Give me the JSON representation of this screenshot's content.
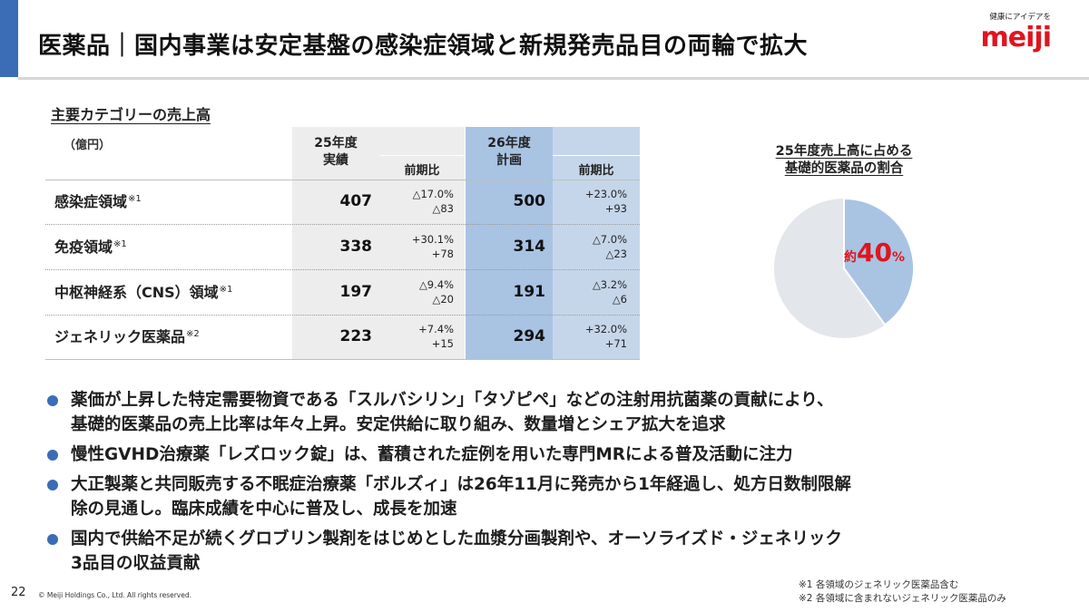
{
  "header": {
    "title": "医薬品｜国内事業は安定基盤の感染症領域と新規発売品目の両輪で拡大",
    "accent_color": "#3a6db5"
  },
  "logo": {
    "tagline": "健康にアイデアを",
    "wordmark": "meiji",
    "color": "#e1141e"
  },
  "table": {
    "title": "主要カテゴリーの売上高",
    "unit": "（億円）",
    "headers": {
      "fy25_line1": "25年度",
      "fy25_line2": "実績",
      "fy25_change": "前期比",
      "fy26_line1": "26年度",
      "fy26_line2": "計画",
      "fy26_change": "前期比"
    },
    "rows": [
      {
        "category": "感染症領域",
        "note": "※1",
        "fy25": "407",
        "fy25_pct": "△17.0%",
        "fy25_abs": "△83",
        "fy26": "500",
        "fy26_pct": "+23.0%",
        "fy26_abs": "+93"
      },
      {
        "category": "免疫領域",
        "note": "※1",
        "fy25": "338",
        "fy25_pct": "+30.1%",
        "fy25_abs": "+78",
        "fy26": "314",
        "fy26_pct": "△7.0%",
        "fy26_abs": "△23"
      },
      {
        "category": "中枢神経系（CNS）領域",
        "note": "※1",
        "fy25": "197",
        "fy25_pct": "△9.4%",
        "fy25_abs": "△20",
        "fy26": "191",
        "fy26_pct": "△3.2%",
        "fy26_abs": "△6"
      },
      {
        "category": "ジェネリック医薬品",
        "note": "※2",
        "fy25": "223",
        "fy25_pct": "+7.4%",
        "fy25_abs": "+15",
        "fy26": "294",
        "fy26_pct": "+32.0%",
        "fy26_abs": "+71"
      }
    ]
  },
  "pie": {
    "title_line1": "25年度売上高に占める",
    "title_line2": "基礎的医薬品の割合",
    "share_percent": 40,
    "label_prefix": "約",
    "label_value": "40",
    "label_unit": "%",
    "share_color": "#a9c3e3",
    "rest_color": "#e3e6ea",
    "label_color": "#e0141d"
  },
  "bullets": [
    {
      "line1": "薬価が上昇した特定需要物資である「スルバシリン」「タゾピペ」などの注射用抗菌薬の貢献により、",
      "line2": "基礎的医薬品の売上比率は年々上昇。安定供給に取り組み、数量増とシェア拡大を追求"
    },
    {
      "line1": "慢性GVHD治療薬「レズロック錠」は、蓄積された症例を用いた専門MRによる普及活動に注力",
      "line2": ""
    },
    {
      "line1": "大正製薬と共同販売する不眠症治療薬「ボルズィ」は26年11月に発売から1年経過し、処方日数制限解",
      "line2": "除の見通し。臨床成績を中心に普及し、成長を加速"
    },
    {
      "line1": "国内で供給不足が続くグロブリン製剤をはじめとした血漿分画製剤や、オーソライズド・ジェネリック",
      "line2": "3品目の収益貢献"
    }
  ],
  "footer": {
    "page_number": "22",
    "copyright": "© Meiji Holdings Co., Ltd. All rights reserved.",
    "note1": "※1 各領域のジェネリック医薬品含む",
    "note2": "※2 各領域に含まれないジェネリック医薬品のみ"
  }
}
